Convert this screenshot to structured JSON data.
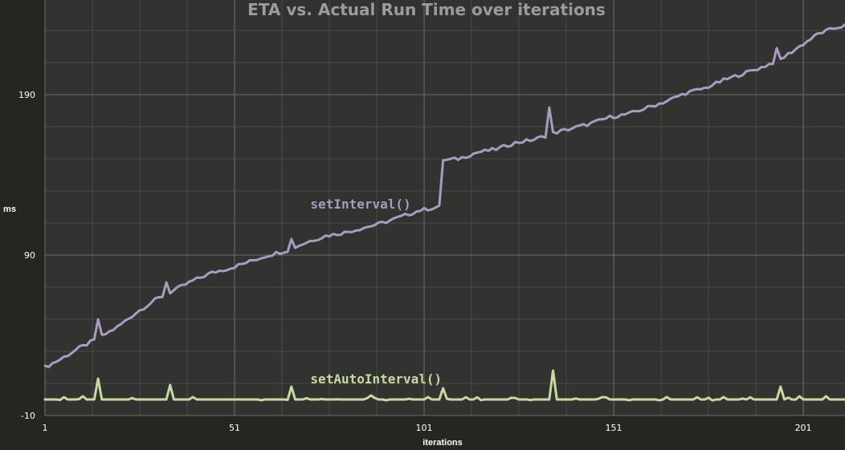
{
  "chart_data": {
    "type": "line",
    "title": "ETA vs. Actual Run Time over iterations",
    "xlabel": "iterations",
    "ylabel": "ms",
    "xlim": [
      1,
      212
    ],
    "ylim": [
      -10,
      249
    ],
    "x_ticks": [
      1,
      51,
      101,
      151,
      201
    ],
    "y_ticks": [
      -10,
      90,
      190
    ],
    "grid": true,
    "legend": "none",
    "colors": {
      "background": "#323230",
      "grid_major": "#6f6f6c",
      "grid_minor": "#4a4a47",
      "tick_text": "#ffffff",
      "title_text": "#9a9b9d"
    },
    "series": [
      {
        "name": "setInterval()",
        "color": "#a99cc0",
        "anchors": [
          [
            1,
            20
          ],
          [
            5,
            25
          ],
          [
            10,
            32
          ],
          [
            15,
            38
          ],
          [
            20,
            45
          ],
          [
            25,
            54
          ],
          [
            30,
            62
          ],
          [
            35,
            68
          ],
          [
            40,
            74
          ],
          [
            45,
            79
          ],
          [
            50,
            82
          ],
          [
            55,
            86
          ],
          [
            60,
            90
          ],
          [
            65,
            93
          ],
          [
            70,
            98
          ],
          [
            75,
            102
          ],
          [
            80,
            104
          ],
          [
            85,
            107
          ],
          [
            90,
            110
          ],
          [
            95,
            114
          ],
          [
            100,
            118
          ],
          [
            105,
            120
          ],
          [
            106,
            149
          ],
          [
            110,
            150
          ],
          [
            115,
            154
          ],
          [
            120,
            156
          ],
          [
            125,
            160
          ],
          [
            130,
            162
          ],
          [
            134,
            165
          ],
          [
            135,
            166
          ],
          [
            140,
            169
          ],
          [
            145,
            172
          ],
          [
            150,
            176
          ],
          [
            155,
            178
          ],
          [
            160,
            182
          ],
          [
            165,
            186
          ],
          [
            170,
            191
          ],
          [
            175,
            194
          ],
          [
            180,
            199
          ],
          [
            185,
            203
          ],
          [
            190,
            207
          ],
          [
            195,
            212
          ],
          [
            200,
            220
          ],
          [
            205,
            228
          ],
          [
            210,
            232
          ],
          [
            212,
            233
          ]
        ],
        "spikes": [
          [
            15,
            50
          ],
          [
            33,
            73
          ],
          [
            66,
            100
          ],
          [
            106,
            149
          ],
          [
            134,
            182
          ],
          [
            194,
            219
          ]
        ]
      },
      {
        "name": "setAutoInterval()",
        "color": "#c6dba0",
        "baseline": 0,
        "spikes": [
          [
            15,
            13
          ],
          [
            34,
            9
          ],
          [
            66,
            8
          ],
          [
            106,
            7
          ],
          [
            135,
            18
          ],
          [
            195,
            8
          ]
        ],
        "bumps": [
          [
            11,
            2
          ],
          [
            40,
            1.5
          ],
          [
            87,
            2.5
          ],
          [
            102,
            1.5
          ],
          [
            148,
            1.5
          ],
          [
            165,
            1.5
          ],
          [
            180,
            1.5
          ],
          [
            200,
            2
          ],
          [
            207,
            2
          ]
        ]
      }
    ],
    "annotations": [
      {
        "text": "setInterval()",
        "x": 71,
        "y": 122,
        "color": "#a99cc0"
      },
      {
        "text": "setAutoInterval()",
        "x": 71,
        "y": 13,
        "color": "#c6dba0"
      }
    ]
  }
}
